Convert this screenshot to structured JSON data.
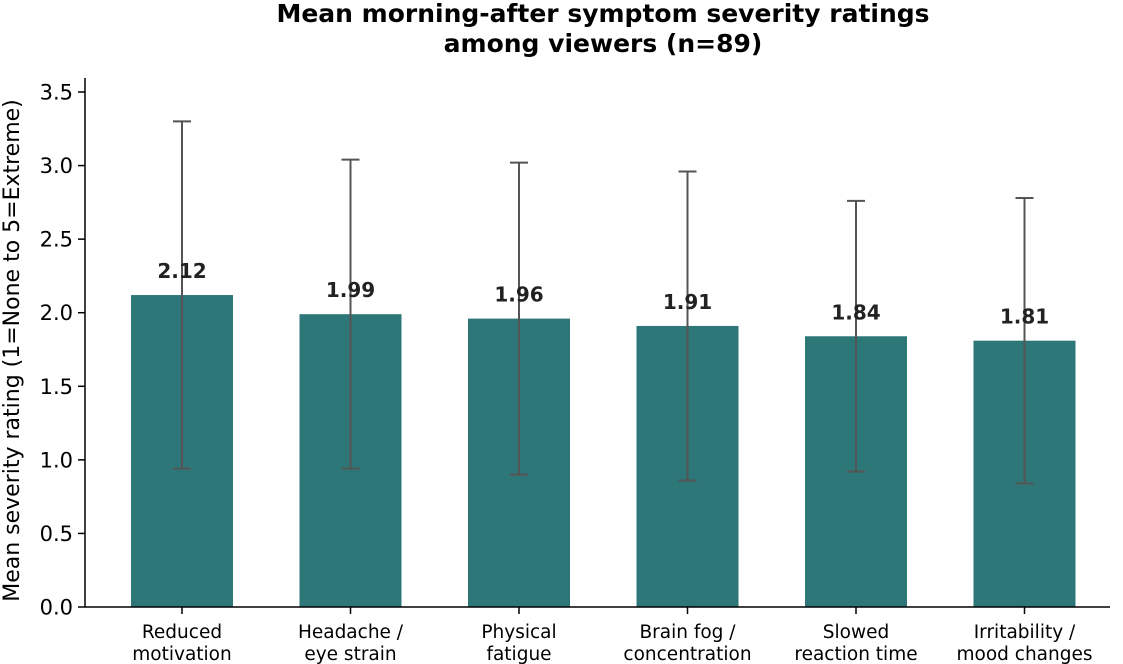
{
  "chart_data": {
    "type": "bar",
    "title_lines": [
      "Mean morning-after symptom severity ratings",
      "among viewers (n=89)"
    ],
    "xlabel": "",
    "ylabel": "Mean severity rating (1=None to 5=Extreme)",
    "categories": [
      [
        "Reduced",
        "motivation"
      ],
      [
        "Headache /",
        "eye strain"
      ],
      [
        "Physical",
        "fatigue"
      ],
      [
        "Brain fog /",
        "concentration"
      ],
      [
        "Slowed",
        "reaction time"
      ],
      [
        "Irritability /",
        "mood changes"
      ]
    ],
    "values": [
      2.12,
      1.99,
      1.96,
      1.91,
      1.84,
      1.81
    ],
    "value_labels": [
      "2.12",
      "1.99",
      "1.96",
      "1.91",
      "1.84",
      "1.81"
    ],
    "error_low": [
      0.94,
      0.94,
      0.9,
      0.86,
      0.92,
      0.84
    ],
    "error_high": [
      3.3,
      3.04,
      3.02,
      2.96,
      2.76,
      2.78
    ],
    "ylim": [
      0,
      3.6
    ],
    "yticks": [
      "0.0",
      "0.5",
      "1.0",
      "1.5",
      "2.0",
      "2.5",
      "3.0",
      "3.5"
    ],
    "grid": false,
    "colors": {
      "bar": "#2e7778",
      "errorbar": "#555555",
      "axis": "#000000"
    }
  }
}
